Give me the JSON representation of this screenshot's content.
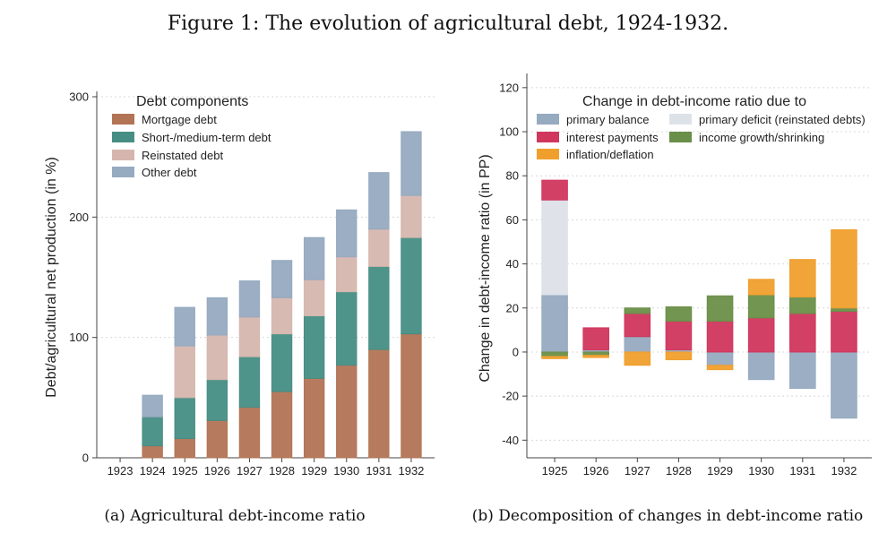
{
  "figure": {
    "title": "Figure 1: The evolution of agricultural debt, 1924-1932."
  },
  "colors": {
    "mortgage": "#b27455",
    "short_medium": "#468e84",
    "reinstated": "#d5b6ae",
    "other": "#96aac0",
    "primary_balance": "#96aac0",
    "primary_deficit": "#dde2e8",
    "interest": "#d1365d",
    "income": "#6a8f48",
    "inflation": "#f09f2d",
    "grid": "#d8d8d8"
  },
  "chart_data": [
    {
      "type": "bar",
      "stacked": true,
      "caption": "(a) Agricultural debt-income ratio",
      "ylabel": "Debt/agricultural net production (in %)",
      "xlabel": "",
      "ylim": [
        0,
        300
      ],
      "yticks": [
        0,
        100,
        200,
        300
      ],
      "grid": true,
      "legend_title": "Debt components",
      "legend_position": "top-left",
      "categories": [
        "1923",
        "1924",
        "1925",
        "1926",
        "1927",
        "1928",
        "1929",
        "1930",
        "1931",
        "1932"
      ],
      "series": [
        {
          "name": "Mortgage debt",
          "color_key": "mortgage",
          "values": [
            0,
            10,
            16,
            31,
            42,
            55,
            66,
            77,
            90,
            103
          ]
        },
        {
          "name": "Short-/medium-term debt",
          "color_key": "short_medium",
          "values": [
            0,
            24,
            34,
            34,
            42,
            48,
            52,
            61,
            69,
            80
          ]
        },
        {
          "name": "Reinstated debt",
          "color_key": "reinstated",
          "values": [
            0,
            0,
            43,
            37,
            33,
            30,
            30,
            29,
            31,
            35
          ]
        },
        {
          "name": "Other debt",
          "color_key": "other",
          "values": [
            0,
            18,
            32,
            31,
            30,
            31,
            35,
            39,
            47,
            53
          ]
        }
      ]
    },
    {
      "type": "bar",
      "stacked": true,
      "caption": "(b) Decomposition of changes in debt-income ratio",
      "ylabel": "Change in debt-income ratio (in PP)",
      "xlabel": "",
      "ylim": [
        -48,
        124
      ],
      "yticks": [
        -40,
        -20,
        0,
        20,
        40,
        60,
        80,
        100,
        120
      ],
      "grid": true,
      "legend_title": "Change in debt-income ratio due to",
      "legend_position": "top",
      "categories": [
        "1925",
        "1926",
        "1927",
        "1928",
        "1929",
        "1930",
        "1931",
        "1932"
      ],
      "series": [
        {
          "name": "primary balance",
          "color_key": "primary_balance",
          "values": [
            26,
            1,
            7,
            1,
            -6,
            -12.5,
            -16.5,
            -30
          ]
        },
        {
          "name": "primary deficit (reinstated debts)",
          "color_key": "primary_deficit",
          "values": [
            43,
            0,
            0,
            0,
            0,
            0,
            0,
            0
          ]
        },
        {
          "name": "interest payments",
          "color_key": "interest",
          "values": [
            9,
            10,
            10.5,
            13,
            14,
            15.5,
            17.5,
            18.5
          ]
        },
        {
          "name": "income growth/shrinking",
          "color_key": "income",
          "values": [
            -2,
            -1.5,
            2.5,
            6.5,
            11.5,
            10.5,
            7.5,
            1.5
          ]
        },
        {
          "name": "inflation/deflation",
          "color_key": "inflation",
          "values": [
            -1,
            -1,
            -6,
            -3.5,
            -2,
            7,
            17,
            35.5
          ]
        }
      ]
    }
  ]
}
